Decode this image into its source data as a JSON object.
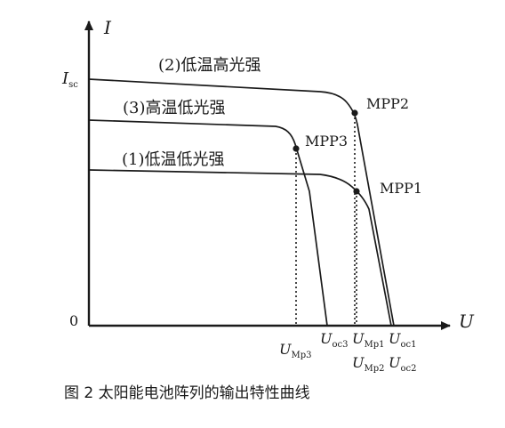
{
  "axes": {
    "y_label": "I",
    "x_label": "U",
    "origin_label": "0",
    "isc_label": "I",
    "isc_sub": "sc"
  },
  "curves": [
    {
      "label": "(2)低温高光强",
      "mpp": "MPP2"
    },
    {
      "label": "(3)高温低光强",
      "mpp": "MPP3"
    },
    {
      "label": "(1)低温低光强",
      "mpp": "MPP1"
    }
  ],
  "x_ticks": {
    "u_mp3": {
      "main": "U",
      "sub": "Mp3"
    },
    "u_oc3": {
      "main": "U",
      "sub": "oc3"
    },
    "u_mp1": {
      "main": "U",
      "sub": "Mp1"
    },
    "u_oc1": {
      "main": "U",
      "sub": "oc1"
    },
    "u_mp2": {
      "main": "U",
      "sub": "Mp2"
    },
    "u_oc2": {
      "main": "U",
      "sub": "oc2"
    }
  },
  "caption": "图 2  太阳能电池阵列的输出特性曲线",
  "colors": {
    "ink": "#1a1a1a",
    "background": "#ffffff"
  }
}
